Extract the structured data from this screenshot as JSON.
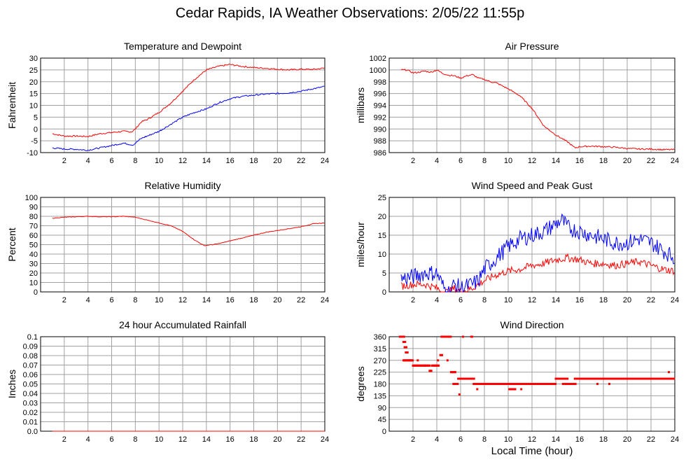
{
  "page": {
    "title": "Cedar Rapids, IA Weather Observations: 2/05/22 11:55p",
    "x_axis_title": "Local Time (hour)"
  },
  "colors": {
    "series_red": "#ff0000",
    "series_blue": "#0000ff",
    "grid": "#a0a0a0"
  },
  "chart_data": [
    {
      "id": "temp",
      "type": "line",
      "title": "Temperature and Dewpoint",
      "ylabel": "Fahrenheit",
      "xlim": [
        0,
        24
      ],
      "ylim": [
        -10,
        30
      ],
      "yticks": [
        -10,
        -5,
        0,
        5,
        10,
        15,
        20,
        25,
        30
      ],
      "xticks": [
        2,
        4,
        6,
        8,
        10,
        12,
        14,
        16,
        18,
        20,
        22,
        24
      ],
      "grid": true,
      "series": [
        {
          "color": "red",
          "noise": 0.3,
          "points": [
            [
              1,
              -2
            ],
            [
              1.5,
              -2.5
            ],
            [
              2,
              -3
            ],
            [
              3,
              -3
            ],
            [
              4,
              -3.2
            ],
            [
              5,
              -2
            ],
            [
              6,
              -1.5
            ],
            [
              7,
              -1
            ],
            [
              7.7,
              -1.2
            ],
            [
              8,
              0
            ],
            [
              8.5,
              3
            ],
            [
              9,
              4
            ],
            [
              10,
              7
            ],
            [
              11,
              11
            ],
            [
              12,
              16
            ],
            [
              13,
              21
            ],
            [
              14,
              25
            ],
            [
              15,
              26.5
            ],
            [
              16,
              27.3
            ],
            [
              17,
              26.5
            ],
            [
              18,
              26
            ],
            [
              19,
              25.7
            ],
            [
              20,
              25.3
            ],
            [
              21,
              25
            ],
            [
              22,
              25.3
            ],
            [
              23,
              25.2
            ],
            [
              24,
              25.8
            ]
          ]
        },
        {
          "color": "blue",
          "noise": 0.3,
          "points": [
            [
              1,
              -8
            ],
            [
              2,
              -8.5
            ],
            [
              3,
              -8.6
            ],
            [
              4,
              -9
            ],
            [
              5,
              -8
            ],
            [
              6,
              -7
            ],
            [
              7,
              -6
            ],
            [
              7.8,
              -6.8
            ],
            [
              8.5,
              -4
            ],
            [
              9,
              -3
            ],
            [
              10,
              -1
            ],
            [
              11,
              2
            ],
            [
              12,
              5
            ],
            [
              13,
              7
            ],
            [
              14,
              8.5
            ],
            [
              15,
              11
            ],
            [
              16,
              12.8
            ],
            [
              17,
              13.8
            ],
            [
              18,
              14.3
            ],
            [
              19,
              14.8
            ],
            [
              20,
              15
            ],
            [
              21,
              15.3
            ],
            [
              22,
              16
            ],
            [
              23,
              17
            ],
            [
              24,
              18
            ]
          ]
        }
      ]
    },
    {
      "id": "pressure",
      "type": "line",
      "title": "Air Pressure",
      "ylabel": "millibars",
      "xlim": [
        0,
        24
      ],
      "ylim": [
        986,
        1002
      ],
      "yticks": [
        986,
        988,
        990,
        992,
        994,
        996,
        998,
        1000,
        1002
      ],
      "xticks": [
        2,
        4,
        6,
        8,
        10,
        12,
        14,
        16,
        18,
        20,
        22,
        24
      ],
      "grid": true,
      "series": [
        {
          "color": "red",
          "noise": 0.12,
          "points": [
            [
              1,
              1000
            ],
            [
              1.5,
              1000
            ],
            [
              2,
              999.5
            ],
            [
              2.5,
              999.6
            ],
            [
              3,
              999.8
            ],
            [
              3.5,
              999.6
            ],
            [
              4,
              1000
            ],
            [
              4.5,
              999.4
            ],
            [
              5,
              999.1
            ],
            [
              5.5,
              999
            ],
            [
              6,
              998.6
            ],
            [
              6.5,
              999
            ],
            [
              7,
              999.2
            ],
            [
              7.5,
              998.6
            ],
            [
              8,
              998.4
            ],
            [
              8.5,
              998
            ],
            [
              9,
              997.8
            ],
            [
              10,
              996.8
            ],
            [
              11,
              995.6
            ],
            [
              12,
              993.5
            ],
            [
              13,
              990.5
            ],
            [
              14,
              989
            ],
            [
              15,
              987.8
            ],
            [
              15.6,
              986.8
            ],
            [
              16,
              987
            ],
            [
              17,
              987.1
            ],
            [
              18,
              987
            ],
            [
              19,
              986.9
            ],
            [
              20,
              986.7
            ],
            [
              21,
              986.6
            ],
            [
              22,
              986.6
            ],
            [
              23,
              986.5
            ],
            [
              24,
              986.5
            ]
          ]
        }
      ]
    },
    {
      "id": "humidity",
      "type": "line",
      "title": "Relative Humidity",
      "ylabel": "Percent",
      "xlim": [
        0,
        24
      ],
      "ylim": [
        0,
        100
      ],
      "yticks": [
        0,
        10,
        20,
        30,
        40,
        50,
        60,
        70,
        80,
        90,
        100
      ],
      "xticks": [
        2,
        4,
        6,
        8,
        10,
        12,
        14,
        16,
        18,
        20,
        22,
        24
      ],
      "grid": true,
      "series": [
        {
          "color": "red",
          "noise": 0.3,
          "points": [
            [
              1,
              78
            ],
            [
              2,
              79
            ],
            [
              3,
              79.5
            ],
            [
              4,
              80
            ],
            [
              5,
              79.5
            ],
            [
              6,
              79.5
            ],
            [
              7,
              80
            ],
            [
              8,
              79
            ],
            [
              9,
              76
            ],
            [
              10,
              73
            ],
            [
              11,
              70
            ],
            [
              12,
              64
            ],
            [
              13,
              55
            ],
            [
              13.8,
              49
            ],
            [
              14.5,
              50
            ],
            [
              15,
              51
            ],
            [
              16,
              54
            ],
            [
              17,
              57
            ],
            [
              18,
              60
            ],
            [
              19,
              63
            ],
            [
              20,
              65
            ],
            [
              21,
              67
            ],
            [
              22,
              69
            ],
            [
              23,
              72
            ],
            [
              24,
              73
            ]
          ]
        }
      ]
    },
    {
      "id": "wind",
      "type": "line",
      "title": "Wind Speed and Peak Gust",
      "ylabel": "miles/hour",
      "xlim": [
        0,
        24
      ],
      "ylim": [
        0,
        25
      ],
      "yticks": [
        0,
        5,
        10,
        15,
        20,
        25
      ],
      "xticks": [
        2,
        4,
        6,
        8,
        10,
        12,
        14,
        16,
        18,
        20,
        22,
        24
      ],
      "grid": true,
      "series": [
        {
          "color": "red",
          "noise": 1.0,
          "points": [
            [
              1,
              1.5
            ],
            [
              2,
              2
            ],
            [
              3,
              2
            ],
            [
              4,
              1
            ],
            [
              4.5,
              0
            ],
            [
              5,
              0
            ],
            [
              5.5,
              1
            ],
            [
              6,
              0
            ],
            [
              7,
              1
            ],
            [
              8,
              3
            ],
            [
              9,
              4.5
            ],
            [
              10,
              5.5
            ],
            [
              11,
              6
            ],
            [
              12,
              7
            ],
            [
              13,
              7.5
            ],
            [
              14,
              8.5
            ],
            [
              15,
              9
            ],
            [
              16,
              8.5
            ],
            [
              17,
              7.5
            ],
            [
              18,
              7.5
            ],
            [
              19,
              7
            ],
            [
              20,
              7.5
            ],
            [
              21,
              8
            ],
            [
              22,
              7
            ],
            [
              23,
              6
            ],
            [
              24,
              5.5
            ]
          ]
        },
        {
          "color": "blue",
          "noise": 2.2,
          "points": [
            [
              1,
              3.5
            ],
            [
              2,
              4
            ],
            [
              3,
              5
            ],
            [
              4,
              5
            ],
            [
              4.6,
              1
            ],
            [
              5,
              0
            ],
            [
              5.5,
              2
            ],
            [
              6,
              1
            ],
            [
              7,
              2
            ],
            [
              7.5,
              3
            ],
            [
              8,
              6
            ],
            [
              9,
              9
            ],
            [
              10,
              12
            ],
            [
              11,
              14
            ],
            [
              12,
              15
            ],
            [
              13,
              16
            ],
            [
              14,
              18
            ],
            [
              14.5,
              19
            ],
            [
              15,
              17
            ],
            [
              16,
              16
            ],
            [
              17,
              15
            ],
            [
              18,
              14
            ],
            [
              19,
              13
            ],
            [
              20,
              13
            ],
            [
              21,
              14
            ],
            [
              22,
              13
            ],
            [
              23,
              11
            ],
            [
              24,
              9
            ]
          ]
        }
      ]
    },
    {
      "id": "rain",
      "type": "line",
      "title": "24 hour Accumulated Rainfall",
      "ylabel": "Inches",
      "xlim": [
        0,
        24
      ],
      "ylim": [
        0,
        0.1
      ],
      "yticks": [
        0.0,
        0.01,
        0.02,
        0.03,
        0.04,
        0.05,
        0.06,
        0.07,
        0.08,
        0.09,
        0.1
      ],
      "ytick_labels": [
        "0.0",
        "0.01",
        "0.02",
        "0.03",
        "0.04",
        "0.05",
        "0.06",
        "0.07",
        "0.08",
        "0.09",
        "0.1"
      ],
      "xticks": [
        2,
        4,
        6,
        8,
        10,
        12,
        14,
        16,
        18,
        20,
        22,
        24
      ],
      "grid": true,
      "series": [
        {
          "color": "red",
          "noise": 0,
          "points": [
            [
              1,
              0
            ],
            [
              24,
              0
            ]
          ]
        }
      ]
    },
    {
      "id": "winddir",
      "type": "scatter",
      "title": "Wind Direction",
      "ylabel": "degrees",
      "xlim": [
        0,
        24
      ],
      "ylim": [
        0,
        360
      ],
      "yticks": [
        0,
        45,
        90,
        135,
        180,
        225,
        270,
        315,
        360
      ],
      "xticks": [
        2,
        4,
        6,
        8,
        10,
        12,
        14,
        16,
        18,
        20,
        22,
        24
      ],
      "grid": true,
      "series": [
        {
          "color": "red",
          "segments": [
            [
              0.9,
              1.3,
              360
            ],
            [
              1.2,
              1.4,
              340
            ],
            [
              1.3,
              1.5,
              320
            ],
            [
              1.4,
              1.6,
              300
            ],
            [
              1.2,
              2.0,
              270
            ],
            [
              2.0,
              3.4,
              250
            ],
            [
              3.4,
              3.6,
              230
            ],
            [
              3.6,
              4.2,
              250
            ],
            [
              4.3,
              4.5,
              290
            ],
            [
              4.4,
              5.2,
              360
            ],
            [
              5.2,
              5.6,
              225
            ],
            [
              5.4,
              5.8,
              180
            ],
            [
              5.8,
              7.2,
              200
            ],
            [
              6.9,
              7.0,
              360
            ],
            [
              7.1,
              10.6,
              180
            ],
            [
              7.6,
              8.4,
              180
            ],
            [
              10.1,
              10.6,
              160
            ],
            [
              10.4,
              14,
              180
            ],
            [
              14,
              15,
              200
            ],
            [
              14.6,
              15.7,
              180
            ],
            [
              15.6,
              24,
              200
            ]
          ],
          "singles": [
            [
              1.7,
              270
            ],
            [
              2.4,
              270
            ],
            [
              3.0,
              250
            ],
            [
              4.1,
              270
            ],
            [
              4.9,
              270
            ],
            [
              5.9,
              140
            ],
            [
              6.2,
              360
            ],
            [
              7.4,
              160
            ],
            [
              8.9,
              180
            ],
            [
              11.1,
              160
            ],
            [
              13.6,
              180
            ],
            [
              17.5,
              180
            ],
            [
              18.5,
              180
            ],
            [
              23.5,
              225
            ]
          ]
        }
      ]
    }
  ]
}
